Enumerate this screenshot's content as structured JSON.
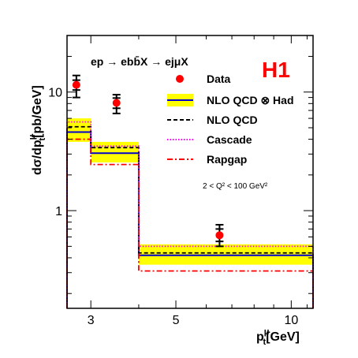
{
  "chart_data": {
    "type": "line",
    "xscale": "log",
    "yscale": "log",
    "xlim": [
      2.6,
      11.4
    ],
    "ylim": [
      0.15,
      30
    ],
    "xlabel": "p",
    "xlabel_sup": "μ",
    "xlabel_sub": "t",
    "xlabel_unit": "[GeV]",
    "ylabel": "dσ/dp",
    "ylabel_sup": "μ",
    "ylabel_sub": "t",
    "ylabel_unit": "[pb/GeV]",
    "x_ticks": [
      {
        "value": 3,
        "label": "3"
      },
      {
        "value": 5,
        "label": "5"
      },
      {
        "value": 10,
        "label": "10"
      }
    ],
    "y_ticks": [
      {
        "value": 1,
        "label": "1"
      },
      {
        "value": 10,
        "label": "10"
      }
    ],
    "bin_edges": [
      2.5,
      3.0,
      4.0,
      11.5
    ],
    "experiment_label": "H1",
    "process_label": "ep → ebb̄X → ejμX",
    "cut_label": "2 < Q² < 100 GeV²",
    "data_points": [
      {
        "x": 2.75,
        "y": 11.5,
        "err_low": 9.0,
        "err_high": 13.8,
        "err_stat_low": 10.4,
        "err_stat_high": 12.6
      },
      {
        "x": 3.5,
        "y": 8.1,
        "err_low": 6.6,
        "err_high": 9.5,
        "err_stat_low": 7.3,
        "err_stat_high": 8.9
      },
      {
        "x": 6.5,
        "y": 0.62,
        "err_low": 0.5,
        "err_high": 0.76,
        "err_stat_low": 0.55,
        "err_stat_high": 0.7
      }
    ],
    "series": [
      {
        "name": "Data",
        "key": "data",
        "color": "#ff0000",
        "style": "marker"
      },
      {
        "name": "NLO QCD ⊗ Had",
        "key": "nlo_had",
        "color": "#0000cc",
        "band_color": "#ffff00",
        "style": "solid",
        "values": [
          4.6,
          3.05,
          0.42
        ],
        "band_low": [
          3.8,
          2.55,
          0.35
        ],
        "band_high": [
          6.0,
          3.8,
          0.52
        ]
      },
      {
        "name": "NLO QCD",
        "key": "nlo",
        "color": "#000000",
        "style": "dashed",
        "values": [
          5.1,
          3.4,
          0.44
        ]
      },
      {
        "name": "Cascade",
        "key": "cascade",
        "color": "#ff00ff",
        "style": "dotted",
        "values": [
          5.6,
          3.5,
          0.5
        ]
      },
      {
        "name": "Rapgap",
        "key": "rapgap",
        "color": "#ff0000",
        "style": "dashdot",
        "values": [
          4.0,
          2.45,
          0.31
        ]
      }
    ]
  }
}
